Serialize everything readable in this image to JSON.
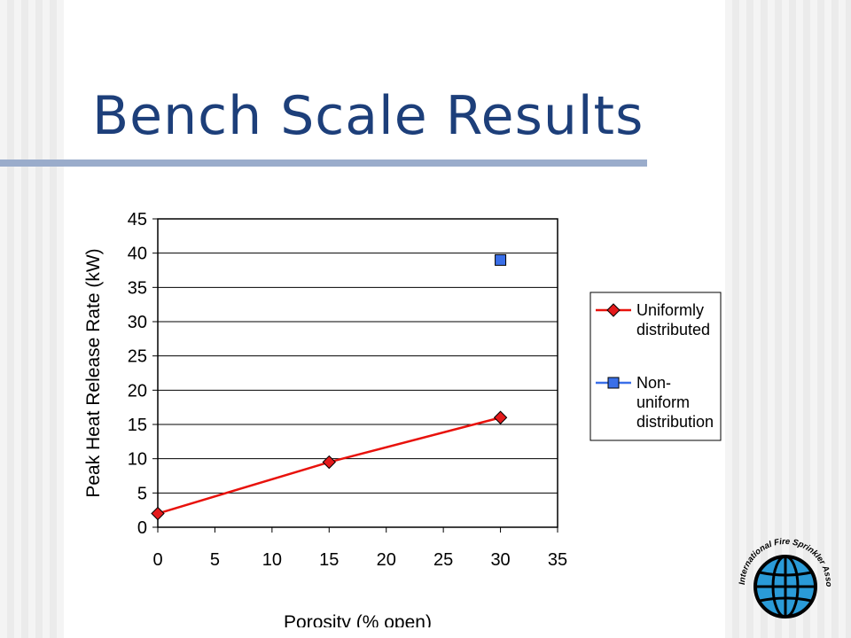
{
  "slide": {
    "title": "Bench Scale Results"
  },
  "logo": {
    "icon": "globe-icon",
    "text": "International Fire Sprinkler Association, Ltd."
  },
  "chart_data": {
    "type": "scatter",
    "xlabel": "Porosity (% open)",
    "ylabel": "Peak Heat Release Rate (kW)",
    "xlim": [
      0,
      35
    ],
    "ylim": [
      0,
      45
    ],
    "x_ticks": [
      0,
      5,
      10,
      15,
      20,
      25,
      30,
      35
    ],
    "y_ticks": [
      0,
      5,
      10,
      15,
      20,
      25,
      30,
      35,
      40,
      45
    ],
    "grid": "horizontal",
    "legend_position": "right",
    "series": [
      {
        "name": "Uniformly distributed",
        "marker": "diamond",
        "line": true,
        "color": "#e8120c",
        "marker_fill": "#e41a1c",
        "points": [
          {
            "x": 0,
            "y": 2
          },
          {
            "x": 15,
            "y": 9.5
          },
          {
            "x": 30,
            "y": 16
          }
        ]
      },
      {
        "name": "Non-uniform distribution",
        "marker": "square",
        "line": false,
        "color": "#3a6fe8",
        "marker_fill": "#3a6fe8",
        "points": [
          {
            "x": 30,
            "y": 39
          }
        ]
      }
    ],
    "legend": [
      {
        "lines": [
          "Uniformly",
          "distributed"
        ]
      },
      {
        "lines": [
          "Non-",
          "uniform",
          "distribution"
        ]
      }
    ]
  }
}
